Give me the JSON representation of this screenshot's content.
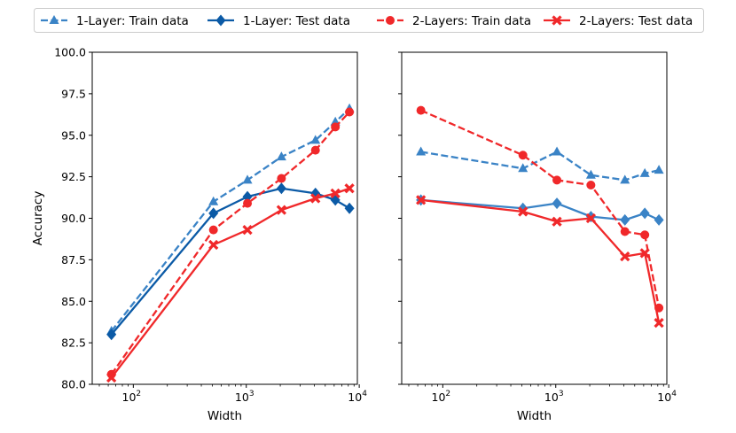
{
  "chart_data": {
    "type": "line",
    "xscale": "log",
    "x": [
      64,
      512,
      1024,
      2048,
      4096,
      6144,
      8192
    ],
    "xtick_labels": [
      {
        "base": "10",
        "exp": "2",
        "value": 100
      },
      {
        "base": "10",
        "exp": "3",
        "value": 1000
      },
      {
        "base": "10",
        "exp": "4",
        "value": 10000
      }
    ],
    "ylim": [
      80.0,
      100.0
    ],
    "yticks": [
      "80.0",
      "82.5",
      "85.0",
      "87.5",
      "90.0",
      "92.5",
      "95.0",
      "97.5",
      "100.0"
    ],
    "ylabel": "Accuracy",
    "legend": [
      {
        "name": "1-Layer: Train data",
        "color": "#3a83c6",
        "style": "dashed",
        "marker": "triangle"
      },
      {
        "name": "1-Layer: Test data",
        "color": "#0b5aa6",
        "style": "solid",
        "marker": "diamond"
      },
      {
        "name": "2-Layers: Train data",
        "color": "#f0282a",
        "style": "dashed",
        "marker": "circle"
      },
      {
        "name": "2-Layers: Test data",
        "color": "#f0282a",
        "style": "solid",
        "marker": "x"
      }
    ],
    "panels": [
      {
        "xlabel": "Width",
        "series": [
          {
            "name": "1-Layer: Train data",
            "color": "#3a83c6",
            "style": "dashed",
            "marker": "triangle",
            "values": [
              83.2,
              91.0,
              92.3,
              93.7,
              94.7,
              95.8,
              96.6
            ]
          },
          {
            "name": "1-Layer: Test data",
            "color": "#0b5aa6",
            "style": "solid",
            "marker": "diamond",
            "values": [
              83.0,
              90.3,
              91.3,
              91.8,
              91.5,
              91.1,
              90.6
            ]
          },
          {
            "name": "2-Layers: Train data",
            "color": "#f0282a",
            "style": "dashed",
            "marker": "circle",
            "values": [
              80.6,
              89.3,
              90.9,
              92.4,
              94.1,
              95.5,
              96.4
            ]
          },
          {
            "name": "2-Layers: Test data",
            "color": "#f0282a",
            "style": "solid",
            "marker": "x",
            "values": [
              80.4,
              88.4,
              89.3,
              90.5,
              91.2,
              91.5,
              91.8
            ]
          }
        ]
      },
      {
        "xlabel": "Width",
        "series": [
          {
            "name": "1-Layer: Train data",
            "color": "#3a83c6",
            "style": "dashed",
            "marker": "triangle",
            "values": [
              94.0,
              93.0,
              94.0,
              92.6,
              92.3,
              92.7,
              92.9
            ]
          },
          {
            "name": "1-Layer: Test data",
            "color": "#3a83c6",
            "style": "solid",
            "marker": "diamond",
            "values": [
              91.1,
              90.6,
              90.9,
              90.1,
              89.9,
              90.3,
              89.9
            ]
          },
          {
            "name": "2-Layers: Train data",
            "color": "#f0282a",
            "style": "dashed",
            "marker": "circle",
            "values": [
              96.5,
              93.8,
              92.3,
              92.0,
              89.2,
              89.0,
              84.6
            ]
          },
          {
            "name": "2-Layers: Test data",
            "color": "#f0282a",
            "style": "solid",
            "marker": "x",
            "values": [
              91.1,
              90.4,
              89.8,
              90.0,
              87.7,
              87.9,
              83.7
            ]
          }
        ]
      }
    ]
  }
}
